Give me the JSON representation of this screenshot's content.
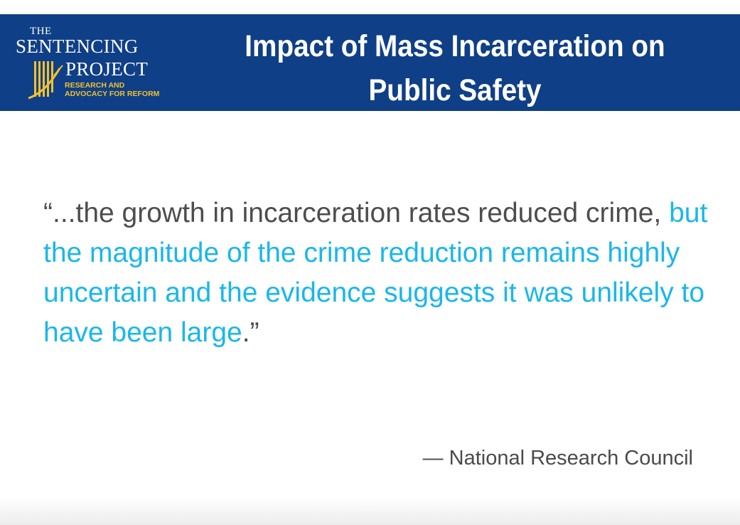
{
  "header": {
    "logo": {
      "the": "THE",
      "sentencing": "SENTENCING",
      "project": "PROJECT",
      "tagline_line1": "RESEARCH AND",
      "tagline_line2": "ADVOCACY FOR REFORM"
    },
    "title_line1": "Impact of Mass Incarceration on",
    "title_line2": "Public Safety"
  },
  "quote": {
    "plain_start": "“...the growth in incarceration rates reduced crime, ",
    "highlighted": "but the magnitude of the crime reduction remains highly uncertain and the evidence suggests it was unlikely to have been large",
    "plain_end": ".”"
  },
  "attribution": "— National Research Council",
  "colors": {
    "header_band": "#0f3f86",
    "logo_gold": "#f2c12e",
    "quote_text": "#4d4d4d",
    "highlight": "#1ab7e9"
  }
}
